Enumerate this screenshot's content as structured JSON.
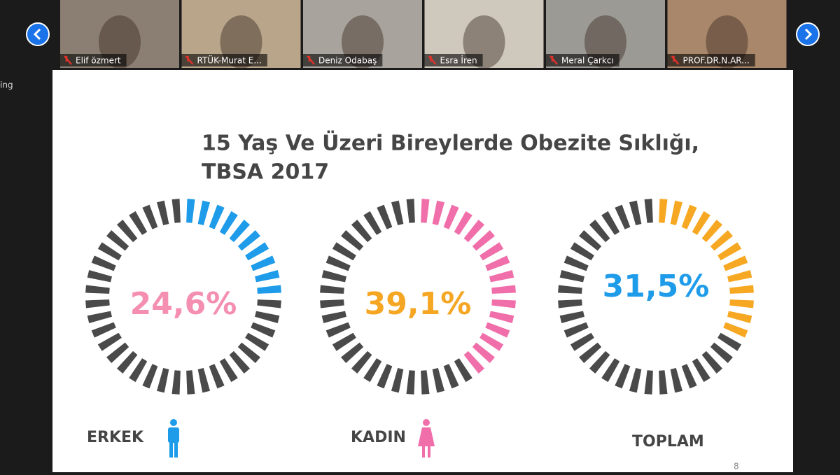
{
  "participants": [
    {
      "name": "Elif özmert"
    },
    {
      "name": "RTÜK-Murat E..."
    },
    {
      "name": "Deniz Odabaş"
    },
    {
      "name": "Esra İren"
    },
    {
      "name": "Meral Çarkcı"
    },
    {
      "name": "PROF.DR.N.AR..."
    }
  ],
  "side_text": "ing",
  "slide": {
    "title_line1": "15 Yaş Ve Üzeri Bireylerde Obezite Sıklığı,",
    "title_line2": "TBSA 2017",
    "page_number": "8",
    "charts": [
      {
        "label": "ERKEK",
        "value": 24.6,
        "value_label": "24,6%",
        "color": "#1e9be9",
        "text_color": "#f48fb1"
      },
      {
        "label": "KADIN",
        "value": 39.1,
        "value_label": "39,1%",
        "color": "#f06ea9",
        "text_color": "#f5a623"
      },
      {
        "label": "TOPLAM",
        "value": 31.5,
        "value_label": "31,5%",
        "color": "#f7a823",
        "text_color": "#1e9be9"
      }
    ]
  }
}
